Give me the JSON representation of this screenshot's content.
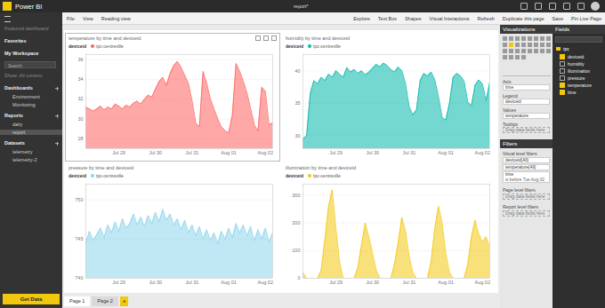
{
  "app": {
    "name": "Power BI",
    "document": "report*"
  },
  "toolbar": {
    "left": [
      "File",
      "View",
      "Reading view"
    ],
    "right": [
      "Explore",
      "Text Box",
      "Shapes",
      "Visual Interactions",
      "Refresh",
      "Duplicate this page",
      "Save",
      "Pin Live Page"
    ]
  },
  "nav": {
    "featured": "Featured dashboard",
    "favorites": "Favorites",
    "workspace": "My Workspace",
    "search": "Search",
    "show": "Show: All content",
    "sections": [
      {
        "title": "Dashboards",
        "items": [
          "Environment",
          "Monitoring"
        ]
      },
      {
        "title": "Reports",
        "items": [
          "daily",
          "report"
        ],
        "selected": "report"
      },
      {
        "title": "Datasets",
        "items": [
          "telemetry",
          "telemetry-2"
        ]
      }
    ],
    "get_data": "Get Data"
  },
  "visualizations": {
    "title": "Visualizations",
    "wells": [
      {
        "label": "Axis",
        "value": "time"
      },
      {
        "label": "Legend",
        "value": "deviceid"
      },
      {
        "label": "Values",
        "value": "temperature"
      },
      {
        "label": "Tooltips",
        "placeholder": "Drag data fields here"
      }
    ],
    "filters": {
      "title": "Filters",
      "sections": [
        {
          "title": "Visual level filters",
          "items": [
            "deviceid(All)",
            "temperature(All)",
            {
              "name": "time",
              "condition": "is before Tue Aug 02"
            }
          ]
        },
        {
          "title": "Page level filters",
          "placeholder": "Drag data fields here"
        },
        {
          "title": "Report level filters",
          "placeholder": "Drag data fields here"
        }
      ]
    }
  },
  "fields": {
    "title": "Fields",
    "table": "tpc",
    "items": [
      {
        "name": "deviceid",
        "checked": true
      },
      {
        "name": "humidity",
        "checked": false
      },
      {
        "name": "illumination",
        "checked": false
      },
      {
        "name": "pressure",
        "checked": false
      },
      {
        "name": "temperature",
        "checked": true
      },
      {
        "name": "time",
        "checked": true
      }
    ]
  },
  "pages": {
    "tabs": [
      "Page 1",
      "Page 2"
    ],
    "selected": "Page 1",
    "add": "+"
  },
  "chart_data": [
    {
      "type": "area",
      "title": "temperature by time and deviceid",
      "legend_title": "deviceid",
      "grid": true,
      "x": [
        28.1,
        28.2,
        28.3,
        28.4,
        28.5,
        28.6,
        28.7,
        28.8,
        28.9,
        29.0,
        29.1,
        29.2,
        29.3,
        29.4,
        29.5,
        29.6,
        29.7,
        29.8,
        29.9,
        30.0,
        30.1,
        30.2,
        30.3,
        30.4,
        30.5,
        30.6,
        30.7,
        30.8,
        30.9,
        31.0,
        31.1,
        31.2,
        31.3,
        31.4,
        31.5,
        31.6,
        31.7,
        31.8,
        31.9,
        32.0,
        32.1,
        32.2,
        32.3,
        32.4,
        32.5,
        32.6,
        32.7,
        32.8,
        32.9,
        33.0,
        33.1,
        33.2
      ],
      "xlim": [
        28.1,
        33.2
      ],
      "xticks": [
        {
          "value": 29,
          "label": "Jul 29"
        },
        {
          "value": 30,
          "label": "Jul 30"
        },
        {
          "value": 31,
          "label": "Jul 31"
        },
        {
          "value": 32,
          "label": "Aug 01"
        },
        {
          "value": 33,
          "label": "Aug 02"
        }
      ],
      "ylim": [
        27,
        36.5
      ],
      "yticks": [
        28,
        30,
        32,
        34,
        36
      ],
      "series": [
        {
          "name": "tpc-centreville",
          "color": "#FD625E",
          "values": [
            31.2,
            31.0,
            30.8,
            31.0,
            31.3,
            30.9,
            31.2,
            31.0,
            31.5,
            31.3,
            31.0,
            31.4,
            31.2,
            31.6,
            31.8,
            31.5,
            32.0,
            32.4,
            32.2,
            33.0,
            33.8,
            34.2,
            33.4,
            34.6,
            35.4,
            35.8,
            35.2,
            34.4,
            33.6,
            31.8,
            29.6,
            29.2,
            34.8,
            33.6,
            32.0,
            31.0,
            30.0,
            29.2,
            28.8,
            28.6,
            30.4,
            35.6,
            34.8,
            33.8,
            32.6,
            31.0,
            29.4,
            28.8,
            33.2,
            32.8,
            29.4,
            29.6
          ]
        }
      ]
    },
    {
      "type": "area",
      "title": "humidity by time and deviceid",
      "legend_title": "deviceid",
      "grid": true,
      "x": [
        28.1,
        28.2,
        28.3,
        28.4,
        28.5,
        28.6,
        28.7,
        28.8,
        28.9,
        29.0,
        29.1,
        29.2,
        29.3,
        29.4,
        29.5,
        29.6,
        29.7,
        29.8,
        29.9,
        30.0,
        30.1,
        30.2,
        30.3,
        30.4,
        30.5,
        30.6,
        30.7,
        30.8,
        30.9,
        31.0,
        31.1,
        31.2,
        31.3,
        31.4,
        31.5,
        31.6,
        31.7,
        31.8,
        31.9,
        32.0,
        32.1,
        32.2,
        32.3,
        32.4,
        32.5,
        32.6,
        32.7,
        32.8,
        32.9,
        33.0,
        33.1,
        33.2
      ],
      "xlim": [
        28.1,
        33.2
      ],
      "xticks": [
        {
          "value": 29,
          "label": "Jul 29"
        },
        {
          "value": 30,
          "label": "Jul 30"
        },
        {
          "value": 31,
          "label": "Jul 31"
        },
        {
          "value": 32,
          "label": "Aug 01"
        },
        {
          "value": 33,
          "label": "Aug 02"
        }
      ],
      "ylim": [
        28,
        42.5
      ],
      "yticks": [
        30,
        35,
        40
      ],
      "series": [
        {
          "name": "tpc-centreville",
          "color": "#01B8AA",
          "values": [
            29.5,
            30.0,
            36.5,
            38.5,
            38.0,
            39.0,
            38.5,
            39.5,
            39.0,
            40.0,
            39.5,
            39.0,
            40.5,
            39.8,
            40.2,
            39.6,
            40.0,
            39.4,
            39.8,
            40.4,
            41.0,
            40.6,
            41.2,
            40.8,
            40.2,
            39.8,
            40.6,
            40.0,
            38.0,
            34.5,
            33.2,
            34.0,
            38.5,
            39.6,
            39.2,
            39.8,
            38.6,
            36.0,
            32.8,
            32.4,
            35.0,
            39.0,
            39.6,
            39.2,
            38.4,
            35.2,
            34.6,
            37.8,
            38.6,
            38.0,
            35.4,
            38.2
          ]
        }
      ]
    },
    {
      "type": "area",
      "title": "pressure by time and deviceid",
      "legend_title": "deviceid",
      "grid": true,
      "x": [
        28.1,
        28.2,
        28.3,
        28.4,
        28.5,
        28.6,
        28.7,
        28.8,
        28.9,
        29.0,
        29.1,
        29.2,
        29.3,
        29.4,
        29.5,
        29.6,
        29.7,
        29.8,
        29.9,
        30.0,
        30.1,
        30.2,
        30.3,
        30.4,
        30.5,
        30.6,
        30.7,
        30.8,
        30.9,
        31.0,
        31.1,
        31.2,
        31.3,
        31.4,
        31.5,
        31.6,
        31.7,
        31.8,
        31.9,
        32.0,
        32.1,
        32.2,
        32.3,
        32.4,
        32.5,
        32.6,
        32.7,
        32.8,
        32.9,
        33.0,
        33.1,
        33.2
      ],
      "xlim": [
        28.1,
        33.2
      ],
      "xticks": [
        {
          "value": 29,
          "label": "Jul 29"
        },
        {
          "value": 30,
          "label": "Jul 30"
        },
        {
          "value": 31,
          "label": "Jul 31"
        },
        {
          "value": 32,
          "label": "Aug 01"
        },
        {
          "value": 33,
          "label": "Aug 02"
        }
      ],
      "ylim": [
        740,
        752
      ],
      "yticks": [
        740,
        745,
        750
      ],
      "series": [
        {
          "name": "tpc-centreville",
          "color": "#8AD4EB",
          "values": [
            744.5,
            746.0,
            744.8,
            745.6,
            746.4,
            745.2,
            746.8,
            745.8,
            747.2,
            746.0,
            747.6,
            746.4,
            747.0,
            748.2,
            746.8,
            747.8,
            746.6,
            748.0,
            747.0,
            748.4,
            747.2,
            748.8,
            747.4,
            748.2,
            746.8,
            747.6,
            746.2,
            747.4,
            745.8,
            746.8,
            745.4,
            746.6,
            745.0,
            746.2,
            744.8,
            745.8,
            744.4,
            746.0,
            745.0,
            746.4,
            745.2,
            747.0,
            745.8,
            746.8,
            745.4,
            746.6,
            744.8,
            746.2,
            745.0,
            746.4,
            744.6,
            745.8
          ]
        }
      ]
    },
    {
      "type": "area",
      "title": "illumination by time and deviceid",
      "legend_title": "deviceid",
      "grid": true,
      "x": [
        28.1,
        28.2,
        28.3,
        28.4,
        28.5,
        28.6,
        28.7,
        28.8,
        28.9,
        29.0,
        29.1,
        29.2,
        29.3,
        29.4,
        29.5,
        29.6,
        29.7,
        29.8,
        29.9,
        30.0,
        30.1,
        30.2,
        30.3,
        30.4,
        30.5,
        30.6,
        30.7,
        30.8,
        30.9,
        31.0,
        31.1,
        31.2,
        31.3,
        31.4,
        31.5,
        31.6,
        31.7,
        31.8,
        31.9,
        32.0,
        32.1,
        32.2,
        32.3,
        32.4,
        32.5,
        32.6,
        32.7,
        32.8,
        32.9,
        33.0,
        33.1,
        33.2
      ],
      "xlim": [
        28.1,
        33.2
      ],
      "xticks": [
        {
          "value": 29,
          "label": "Jul 29"
        },
        {
          "value": 30,
          "label": "Jul 30"
        },
        {
          "value": 31,
          "label": "Jul 31"
        },
        {
          "value": 32,
          "label": "Aug 01"
        },
        {
          "value": 33,
          "label": "Aug 02"
        }
      ],
      "ylim": [
        0,
        340
      ],
      "yticks": [
        0,
        100,
        200,
        300
      ],
      "series": [
        {
          "name": "tpc-centreville",
          "color": "#F2C80F",
          "values": [
            20,
            0,
            0,
            0,
            0,
            30,
            140,
            260,
            320,
            180,
            60,
            0,
            0,
            0,
            0,
            40,
            120,
            200,
            150,
            90,
            30,
            0,
            0,
            0,
            0,
            50,
            130,
            220,
            170,
            80,
            20,
            0,
            0,
            0,
            0,
            60,
            180,
            260,
            200,
            90,
            20,
            0,
            0,
            0,
            0,
            50,
            150,
            210,
            160,
            130,
            150,
            110
          ]
        }
      ]
    }
  ]
}
